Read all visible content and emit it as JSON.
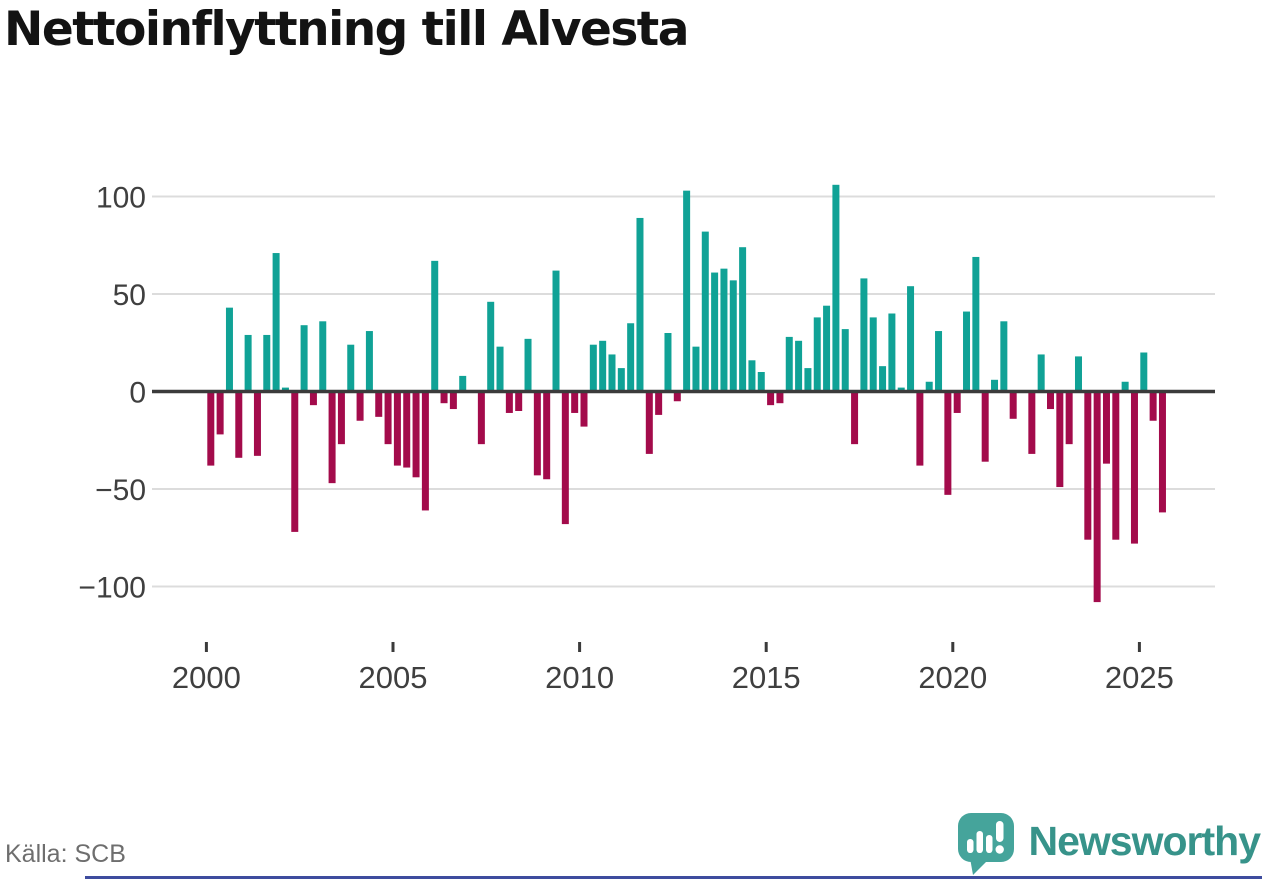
{
  "title": "Nettoinflyttning till Alvesta",
  "source": "Källa: SCB",
  "branding": {
    "wordmark": "Newsworthy"
  },
  "colors": {
    "positive_bar": "#10a296",
    "negative_bar": "#a30b4b",
    "axis": "#3b3b3b",
    "grid": "#dcdcdc",
    "tick_label": "#3f3f3f",
    "title": "#131313",
    "source": "#6e6e6e",
    "logo_icon": "#45a49b",
    "wordmark": "#37938a",
    "accent_strip": "#3e4c9e"
  },
  "chart_data": {
    "type": "bar",
    "title": "Nettoinflyttning till Alvesta",
    "frequency": "quarterly",
    "period_start": "2000Q1",
    "period_end": "2025Q3",
    "values": [
      -38,
      -22,
      43,
      -34,
      29,
      -33,
      29,
      71,
      2,
      -72,
      34,
      -7,
      36,
      -47,
      -27,
      24,
      -15,
      31,
      -13,
      -27,
      -38,
      -39,
      -44,
      -61,
      67,
      -6,
      -9,
      8,
      0,
      -27,
      46,
      23,
      -11,
      -10,
      27,
      -43,
      -45,
      62,
      -68,
      -11,
      -18,
      24,
      26,
      19,
      12,
      35,
      89,
      -32,
      -12,
      30,
      -5,
      103,
      23,
      82,
      61,
      63,
      57,
      74,
      16,
      10,
      -7,
      -6,
      28,
      26,
      12,
      38,
      44,
      106,
      32,
      -27,
      58,
      38,
      13,
      40,
      2,
      54,
      -38,
      5,
      31,
      -53,
      -11,
      41,
      69,
      -36,
      6,
      36,
      -14,
      0,
      -32,
      19,
      -9,
      -49,
      -27,
      18,
      -76,
      -108,
      -37,
      -76,
      5,
      -78,
      20,
      -15,
      -62
    ],
    "positive_color_meaning": "net in-migration",
    "negative_color_meaning": "net out-migration",
    "yticks": [
      100,
      50,
      0,
      -50,
      -100
    ],
    "ytick_labels": [
      "100",
      "50",
      "0",
      "−50",
      "−100"
    ],
    "xticks": [
      2000,
      2005,
      2010,
      2015,
      2020,
      2025
    ],
    "xtick_labels": [
      "2000",
      "2005",
      "2010",
      "2015",
      "2020",
      "2025"
    ],
    "ylim": [
      -115,
      112
    ],
    "grid": "horizontal",
    "legend": "none"
  }
}
